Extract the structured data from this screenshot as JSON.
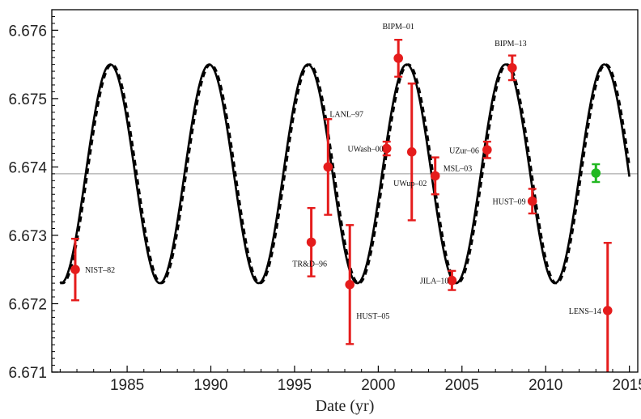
{
  "chart_data": {
    "type": "scatter",
    "title": "",
    "xlabel": "Date  (yr)",
    "ylabel": "",
    "xlim": [
      1980.5,
      2015.5
    ],
    "ylim": [
      6.671,
      6.6763
    ],
    "xticks": [
      1985,
      1990,
      1995,
      2000,
      2005,
      2010,
      2015
    ],
    "xtick_labels": [
      "1985",
      "1990",
      "1995",
      "2000",
      "2005",
      "2010",
      "2015"
    ],
    "yticks": [
      6.671,
      6.672,
      6.673,
      6.674,
      6.675,
      6.676
    ],
    "ytick_labels": [
      "6.671",
      "6.672",
      "6.673",
      "6.674",
      "6.675",
      "6.676"
    ],
    "grid": false,
    "reference_line": {
      "y": 6.6739
    },
    "fit_curves": [
      {
        "style": "solid",
        "color": "#000000",
        "mean": 6.6739,
        "amplitude": 0.0016,
        "period": 5.9,
        "peak_at": 1984.0,
        "x_range": [
          1981.0,
          2015.0
        ]
      },
      {
        "style": "dashed",
        "color": "#000000",
        "mean": 6.6739,
        "amplitude": 0.0016,
        "period": 5.9,
        "peak_at": 1984.1,
        "x_range": [
          1981.0,
          2015.0
        ]
      }
    ],
    "series": [
      {
        "color": "#e51c1c",
        "points": [
          {
            "label": "NIST–82",
            "x": 1981.9,
            "y": 6.6725,
            "err": 0.00045
          },
          {
            "label": "TR&D–96",
            "x": 1996.0,
            "y": 6.6729,
            "err": 0.0005
          },
          {
            "label": "LANL–97",
            "x": 1997.0,
            "y": 6.674,
            "err": 0.0007
          },
          {
            "label": "HUST–05",
            "x": 1998.3,
            "y": 6.67228,
            "err": 0.00087
          },
          {
            "label": "UWash–00",
            "x": 2000.5,
            "y": 6.67427,
            "err": 0.0001
          },
          {
            "label": "BIPM–01",
            "x": 2001.2,
            "y": 6.67559,
            "err": 0.00027
          },
          {
            "label": "UWup–02",
            "x": 2002.0,
            "y": 6.67422,
            "err": 0.001
          },
          {
            "label": "MSL–03",
            "x": 2003.4,
            "y": 6.67387,
            "err": 0.00027
          },
          {
            "label": "JILA–10",
            "x": 2004.4,
            "y": 6.67234,
            "err": 0.00014
          },
          {
            "label": "UZur–06",
            "x": 2006.5,
            "y": 6.67425,
            "err": 0.00012
          },
          {
            "label": "BIPM–13",
            "x": 2008.0,
            "y": 6.67545,
            "err": 0.00018
          },
          {
            "label": "HUST–09",
            "x": 2009.2,
            "y": 6.6735,
            "err": 0.00018
          },
          {
            "label": "LENS–14",
            "x": 2013.7,
            "y": 6.6719,
            "err": 0.00099
          }
        ]
      },
      {
        "color": "#22b822",
        "points": [
          {
            "label": "",
            "x": 2013.0,
            "y": 6.67391,
            "err": 0.00013
          }
        ]
      }
    ]
  }
}
